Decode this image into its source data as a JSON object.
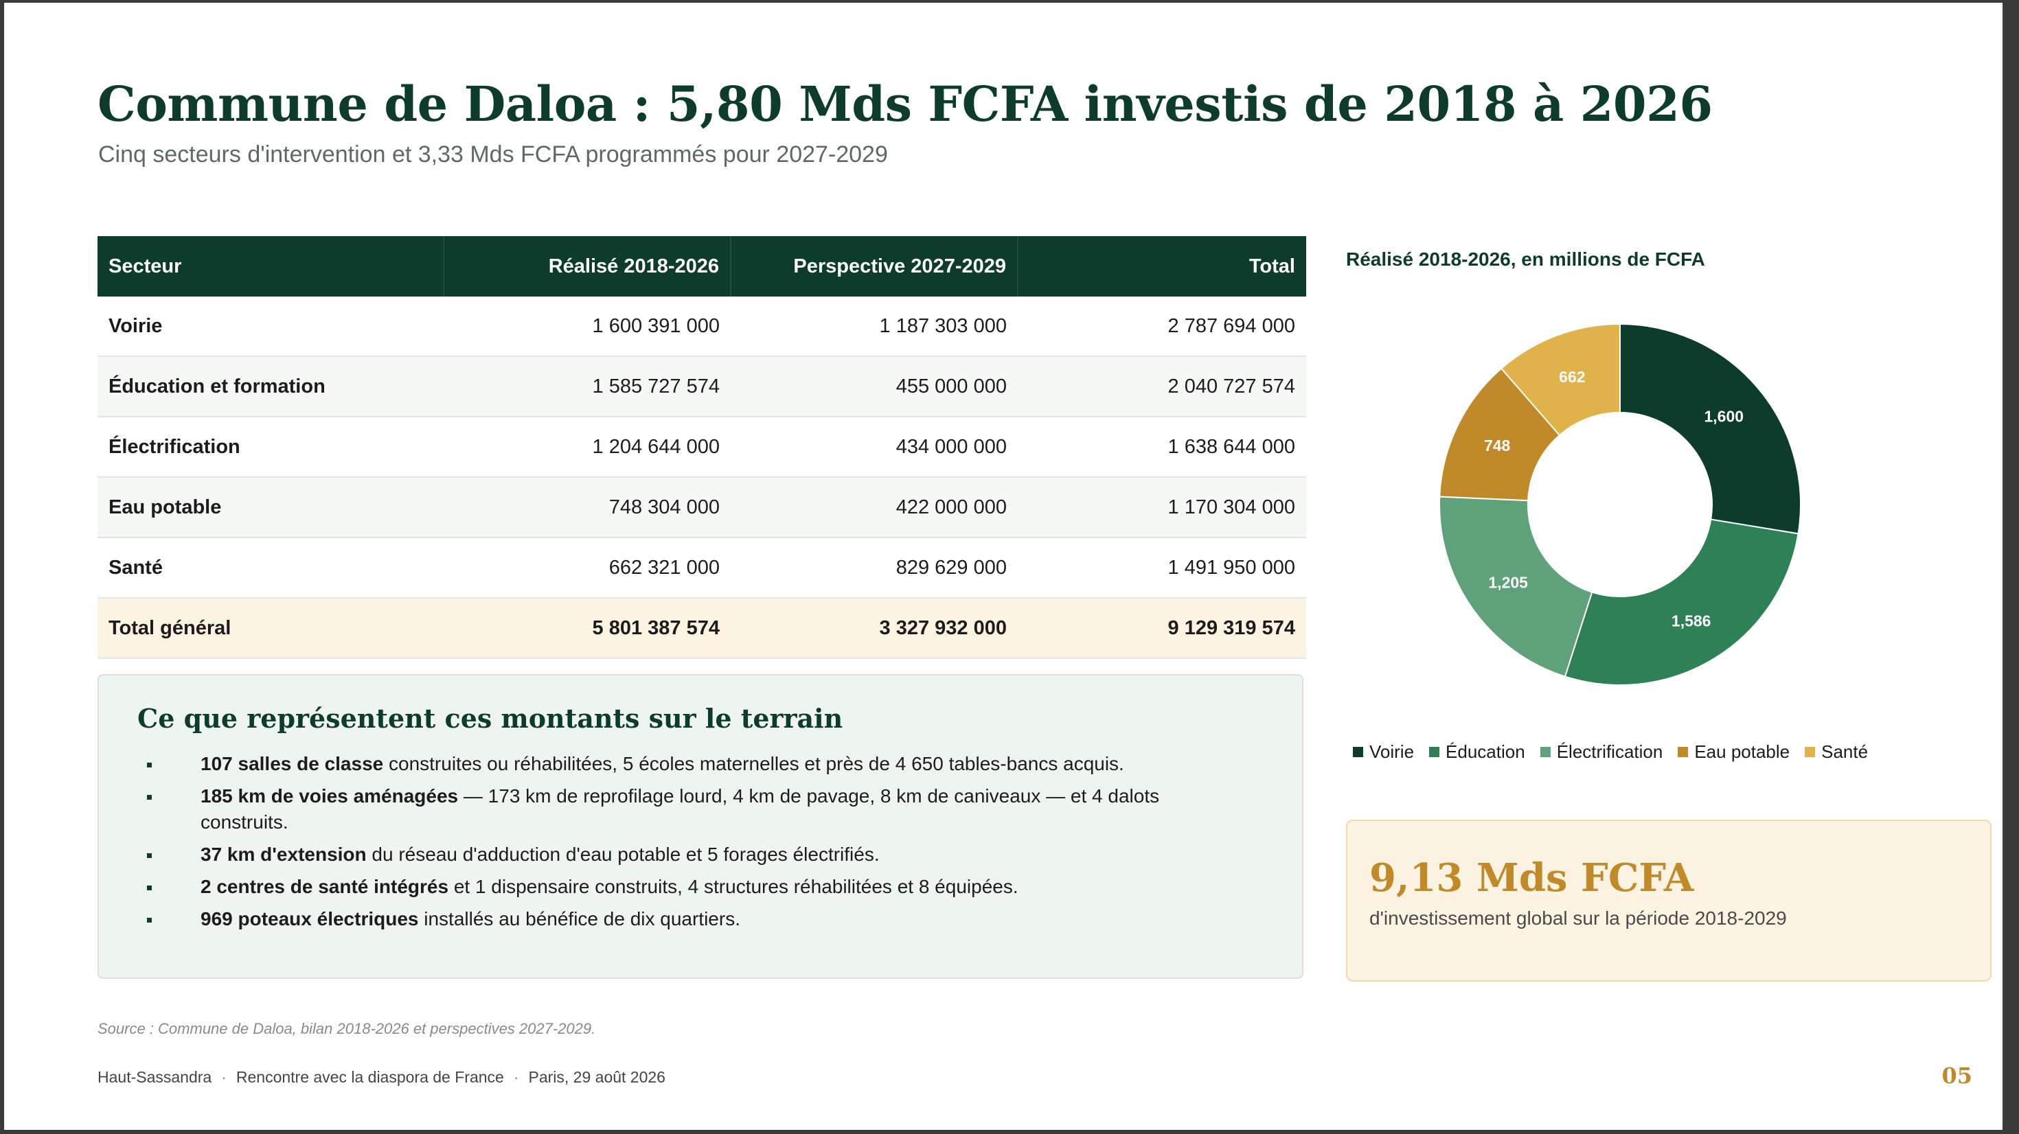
{
  "title": "Commune de Daloa : 5,80 Mds FCFA investis de 2018 à 2026",
  "subtitle": "Cinq secteurs d'intervention et 3,33 Mds FCFA programmés pour 2027-2029",
  "table": {
    "headers": [
      "Secteur",
      "Réalisé 2018-2026",
      "Perspective 2027-2029",
      "Total"
    ],
    "rows": [
      [
        "Voirie",
        "1 600 391 000",
        "1 187 303 000",
        "2 787 694 000"
      ],
      [
        "Éducation et formation",
        "1 585 727 574",
        "455 000 000",
        "2 040 727 574"
      ],
      [
        "Électrification",
        "1 204 644 000",
        "434 000 000",
        "1 638 644 000"
      ],
      [
        "Eau potable",
        "748 304 000",
        "422 000 000",
        "1 170 304 000"
      ],
      [
        "Santé",
        "662 321 000",
        "829 629 000",
        "1 491 950 000"
      ]
    ],
    "total": [
      "Total général",
      "5 801 387 574",
      "3 327 932 000",
      "9 129 319 574"
    ]
  },
  "terrain": {
    "heading": "Ce que représentent ces montants sur le terrain",
    "items": [
      {
        "bold": "107 salles de classe",
        "text": " construites ou réhabilitées, 5 écoles maternelles et près de 4 650 tables-bancs acquis."
      },
      {
        "bold": "185 km de voies aménagées",
        "text": " — 173 km de reprofilage lourd, 4 km de pavage, 8 km de caniveaux — et 4 dalots construits."
      },
      {
        "bold": "37 km d'extension",
        "text": " du réseau d'adduction d'eau potable et 5 forages électrifiés."
      },
      {
        "bold": "2 centres de santé intégrés",
        "text": " et 1 dispensaire construits, 4 structures réhabilitées et 8 équipées."
      },
      {
        "bold": "969 poteaux électriques",
        "text": " installés au bénéfice de dix quartiers."
      }
    ]
  },
  "chart_data": {
    "type": "pie",
    "title": "Réalisé 2018-2026, en millions de FCFA",
    "categories": [
      "Voirie",
      "Éducation",
      "Électrification",
      "Eau potable",
      "Santé"
    ],
    "values": [
      1600,
      1586,
      1205,
      748,
      662
    ],
    "labels": [
      "1,600",
      "1,586",
      "1,205",
      "748",
      "662"
    ],
    "colors": [
      "#0d3b2c",
      "#2e8056",
      "#5fa17a",
      "#c08a2a",
      "#e2b24a"
    ],
    "donut": true,
    "start": "12 o'clock",
    "direction": "clockwise",
    "legend": "bottom"
  },
  "kpi": {
    "value": "9,13 Mds FCFA",
    "caption": "d'investissement global sur la période 2018-2029"
  },
  "source": "Source : Commune de Daloa, bilan 2018-2026 et perspectives 2027-2029.",
  "footer": {
    "items": [
      "Haut-Sassandra",
      "Rencontre avec la diaspora de France",
      "Paris, 29 août 2026"
    ],
    "separator": "·"
  },
  "page_number": "05"
}
